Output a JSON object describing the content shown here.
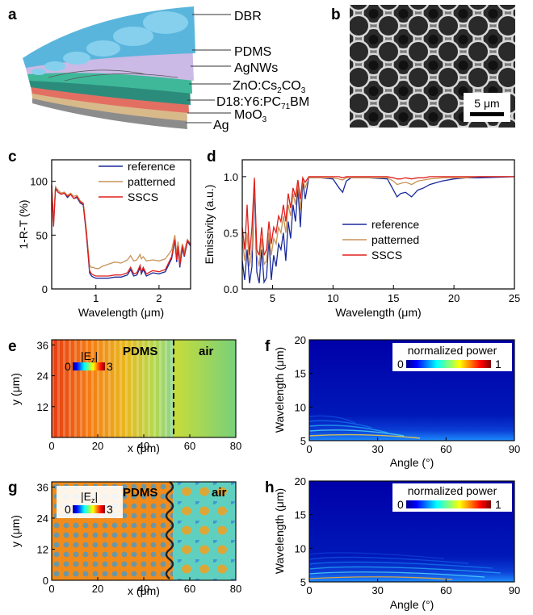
{
  "panels": {
    "a": {
      "letter": "a",
      "layers": [
        "DBR",
        "PDMS",
        "AgNWs",
        "ZnO:Cs",
        "2",
        "CO",
        "3",
        "D18:Y6:PC",
        "71",
        "BM",
        "MoO",
        "3",
        "Ag"
      ]
    },
    "b": {
      "letter": "b",
      "scale_bar": "5 μm"
    },
    "e": {
      "letter": "e",
      "region_left": "PDMS",
      "region_right": "air",
      "colorbar_label": "|E",
      "colorbar_sub": "z",
      "colorbar_close": "|",
      "cb_min": "0",
      "cb_max": "3",
      "xlabel": "x (μm)",
      "ylabel": "y (μm)"
    },
    "f": {
      "letter": "f",
      "colorbar_label": "normalized power",
      "cb_min": "0",
      "cb_max": "1",
      "xlabel": "Angle (°)",
      "ylabel": "Wavelength (μm)"
    },
    "g": {
      "letter": "g",
      "region_left": "PDMS",
      "region_right": "air",
      "colorbar_label": "|E",
      "colorbar_sub": "z",
      "colorbar_close": "|",
      "cb_min": "0",
      "cb_max": "3",
      "xlabel": "x (μm)",
      "ylabel": "y (μm)"
    },
    "h": {
      "letter": "h",
      "colorbar_label": "normalized power",
      "cb_min": "0",
      "cb_max": "1",
      "xlabel": "Angle (°)",
      "ylabel": "Wavelength (μm)"
    }
  },
  "colors": {
    "reference": "#1a2a9c",
    "patterned": "#c9935a",
    "SSCS": "#e0201c"
  },
  "chart_data": [
    {
      "id": "c",
      "letter": "c",
      "type": "line",
      "xlabel": "Wavelength (μm)",
      "ylabel": "1-R-T (%)",
      "xlim": [
        0.3,
        2.5
      ],
      "ylim": [
        0,
        120
      ],
      "xticks": [
        1,
        2
      ],
      "yticks": [
        0,
        50,
        100
      ],
      "legend": [
        "reference",
        "patterned",
        "SSCS"
      ],
      "legend_position": "top-right",
      "series": [
        {
          "name": "reference",
          "x": [
            0.3,
            0.33,
            0.36,
            0.4,
            0.45,
            0.5,
            0.55,
            0.6,
            0.65,
            0.7,
            0.75,
            0.8,
            0.85,
            0.88,
            0.9,
            0.93,
            0.96,
            1.0,
            1.05,
            1.1,
            1.2,
            1.3,
            1.4,
            1.5,
            1.55,
            1.6,
            1.65,
            1.7,
            1.72,
            1.75,
            1.8,
            1.9,
            2.0,
            2.1,
            2.2,
            2.25,
            2.28,
            2.3,
            2.33,
            2.37,
            2.4,
            2.45,
            2.5
          ],
          "y": [
            96,
            60,
            94,
            90,
            88,
            89,
            85,
            88,
            84,
            85,
            80,
            78,
            50,
            30,
            15,
            12,
            11,
            10,
            10,
            10,
            10,
            11,
            11,
            13,
            18,
            12,
            13,
            20,
            14,
            18,
            12,
            15,
            14,
            16,
            28,
            45,
            25,
            38,
            20,
            38,
            30,
            44,
            40
          ]
        },
        {
          "name": "patterned",
          "x": [
            0.3,
            0.33,
            0.36,
            0.4,
            0.45,
            0.5,
            0.55,
            0.6,
            0.65,
            0.7,
            0.75,
            0.8,
            0.85,
            0.88,
            0.9,
            0.93,
            0.96,
            1.0,
            1.05,
            1.1,
            1.2,
            1.3,
            1.4,
            1.5,
            1.55,
            1.6,
            1.65,
            1.7,
            1.72,
            1.75,
            1.8,
            1.9,
            2.0,
            2.1,
            2.2,
            2.25,
            2.28,
            2.3,
            2.33,
            2.37,
            2.4,
            2.45,
            2.5
          ],
          "y": [
            97,
            62,
            95,
            92,
            89,
            90,
            87,
            89,
            86,
            87,
            82,
            80,
            55,
            35,
            22,
            20,
            20,
            19,
            19,
            21,
            23,
            25,
            24,
            27,
            31,
            26,
            27,
            32,
            28,
            30,
            26,
            27,
            26,
            28,
            36,
            50,
            32,
            44,
            28,
            42,
            35,
            46,
            42
          ]
        },
        {
          "name": "SSCS",
          "x": [
            0.3,
            0.33,
            0.36,
            0.4,
            0.45,
            0.5,
            0.55,
            0.6,
            0.65,
            0.7,
            0.75,
            0.8,
            0.85,
            0.88,
            0.9,
            0.93,
            0.96,
            1.0,
            1.05,
            1.1,
            1.2,
            1.3,
            1.4,
            1.5,
            1.55,
            1.6,
            1.65,
            1.7,
            1.72,
            1.75,
            1.8,
            1.9,
            2.0,
            2.1,
            2.2,
            2.25,
            2.28,
            2.3,
            2.33,
            2.37,
            2.4,
            2.45,
            2.5
          ],
          "y": [
            95,
            58,
            93,
            90,
            88,
            89,
            86,
            88,
            84,
            86,
            81,
            79,
            52,
            32,
            17,
            14,
            13,
            12,
            12,
            12,
            12,
            13,
            13,
            15,
            20,
            14,
            15,
            22,
            16,
            20,
            14,
            17,
            16,
            18,
            30,
            46,
            27,
            40,
            22,
            40,
            31,
            45,
            41
          ]
        }
      ]
    },
    {
      "id": "d",
      "letter": "d",
      "type": "line",
      "xlabel": "Wavelength (μm)",
      "ylabel": "Emissivity (a.u.)",
      "xlim": [
        2.5,
        25
      ],
      "ylim": [
        0,
        1.15
      ],
      "xticks": [
        5,
        10,
        15,
        20,
        25
      ],
      "yticks": [
        0.0,
        0.5,
        1.0
      ],
      "legend": [
        "reference",
        "patterned",
        "SSCS"
      ],
      "legend_position": "bottom-center",
      "series": [
        {
          "name": "reference",
          "x": [
            2.5,
            2.7,
            2.9,
            3.1,
            3.3,
            3.5,
            3.7,
            3.9,
            4.1,
            4.3,
            4.5,
            4.7,
            4.9,
            5.1,
            5.3,
            5.5,
            5.7,
            5.9,
            6.1,
            6.3,
            6.5,
            6.7,
            6.9,
            7.1,
            7.3,
            7.5,
            7.7,
            8.0,
            9,
            10,
            10.5,
            10.8,
            11.1,
            11.5,
            13,
            14.5,
            15,
            15.3,
            15.6,
            16,
            16.5,
            17,
            17.5,
            18,
            19,
            20,
            21,
            22,
            25
          ],
          "y": [
            0.25,
            0.08,
            0.35,
            0.05,
            0.2,
            0.95,
            0.15,
            0.05,
            0.35,
            0.06,
            0.1,
            0.45,
            0.08,
            0.3,
            0.2,
            0.4,
            0.35,
            0.5,
            0.25,
            0.6,
            0.45,
            0.75,
            0.6,
            0.9,
            0.55,
            0.95,
            0.8,
            0.99,
            0.99,
            0.98,
            0.9,
            0.86,
            0.96,
            0.99,
            0.99,
            0.98,
            0.88,
            0.82,
            0.85,
            0.86,
            0.82,
            0.88,
            0.9,
            0.93,
            0.96,
            0.98,
            0.99,
            0.99,
            1.0
          ]
        },
        {
          "name": "patterned",
          "x": [
            2.5,
            2.7,
            2.9,
            3.1,
            3.3,
            3.5,
            3.7,
            3.9,
            4.1,
            4.3,
            4.5,
            4.7,
            4.9,
            5.1,
            5.3,
            5.5,
            5.7,
            5.9,
            6.1,
            6.3,
            6.5,
            6.7,
            6.9,
            7.1,
            7.3,
            7.5,
            7.7,
            8.0,
            9,
            10,
            10.5,
            10.8,
            11.1,
            11.5,
            13,
            14.5,
            15,
            15.3,
            15.6,
            16,
            16.5,
            17,
            17.5,
            18,
            19,
            20,
            21,
            22,
            25
          ],
          "y": [
            0.45,
            0.25,
            0.5,
            0.2,
            0.35,
            0.97,
            0.3,
            0.2,
            0.45,
            0.22,
            0.25,
            0.5,
            0.3,
            0.45,
            0.4,
            0.55,
            0.5,
            0.65,
            0.5,
            0.75,
            0.65,
            0.85,
            0.75,
            0.95,
            0.7,
            0.98,
            0.9,
            0.99,
            0.99,
            0.99,
            0.98,
            0.97,
            0.99,
            0.99,
            0.99,
            0.99,
            0.96,
            0.93,
            0.94,
            0.95,
            0.93,
            0.96,
            0.97,
            0.98,
            0.99,
            0.99,
            0.99,
            1.0,
            1.0
          ]
        },
        {
          "name": "SSCS",
          "x": [
            2.5,
            2.7,
            2.9,
            3.1,
            3.3,
            3.5,
            3.7,
            3.9,
            4.1,
            4.3,
            4.5,
            4.7,
            4.9,
            5.1,
            5.3,
            5.5,
            5.7,
            5.9,
            6.1,
            6.3,
            6.5,
            6.7,
            6.9,
            7.1,
            7.3,
            7.5,
            7.7,
            8.0,
            9,
            10,
            10.5,
            10.8,
            11.1,
            11.5,
            13,
            14.5,
            15,
            15.3,
            15.6,
            16,
            16.5,
            17,
            17.5,
            18,
            19,
            20,
            21,
            22,
            25
          ],
          "y": [
            0.55,
            0.35,
            0.75,
            0.3,
            0.55,
            0.99,
            0.35,
            0.3,
            0.55,
            0.3,
            0.35,
            0.6,
            0.4,
            0.55,
            0.5,
            0.65,
            0.6,
            0.75,
            0.6,
            0.85,
            0.72,
            0.9,
            0.82,
            0.97,
            0.8,
            0.99,
            0.95,
            1.0,
            1.0,
            1.0,
            1.0,
            0.99,
            1.0,
            1.0,
            1.0,
            1.0,
            0.99,
            0.98,
            0.98,
            0.99,
            0.98,
            0.99,
            0.99,
            1.0,
            1.0,
            1.0,
            1.0,
            1.0,
            1.0
          ]
        }
      ]
    },
    {
      "id": "e_axes",
      "type": "heatmap",
      "xlim": [
        0,
        80
      ],
      "ylim": [
        0,
        38
      ],
      "xticks": [
        0,
        20,
        40,
        60,
        80
      ],
      "yticks": [
        12,
        24,
        36
      ],
      "interface_x": 53
    },
    {
      "id": "f_axes",
      "type": "heatmap",
      "xlim": [
        0,
        90
      ],
      "ylim": [
        5,
        20
      ],
      "xticks": [
        0,
        30,
        60,
        90
      ],
      "yticks": [
        5,
        10,
        15,
        20
      ]
    },
    {
      "id": "g_axes",
      "type": "heatmap",
      "xlim": [
        0,
        80
      ],
      "ylim": [
        0,
        38
      ],
      "xticks": [
        0,
        20,
        40,
        60,
        80
      ],
      "yticks": [
        0,
        12,
        24,
        36
      ],
      "interface_x": 52
    },
    {
      "id": "h_axes",
      "type": "heatmap",
      "xlim": [
        0,
        90
      ],
      "ylim": [
        5,
        20
      ],
      "xticks": [
        0,
        30,
        60,
        90
      ],
      "yticks": [
        5,
        10,
        15,
        20
      ]
    }
  ]
}
